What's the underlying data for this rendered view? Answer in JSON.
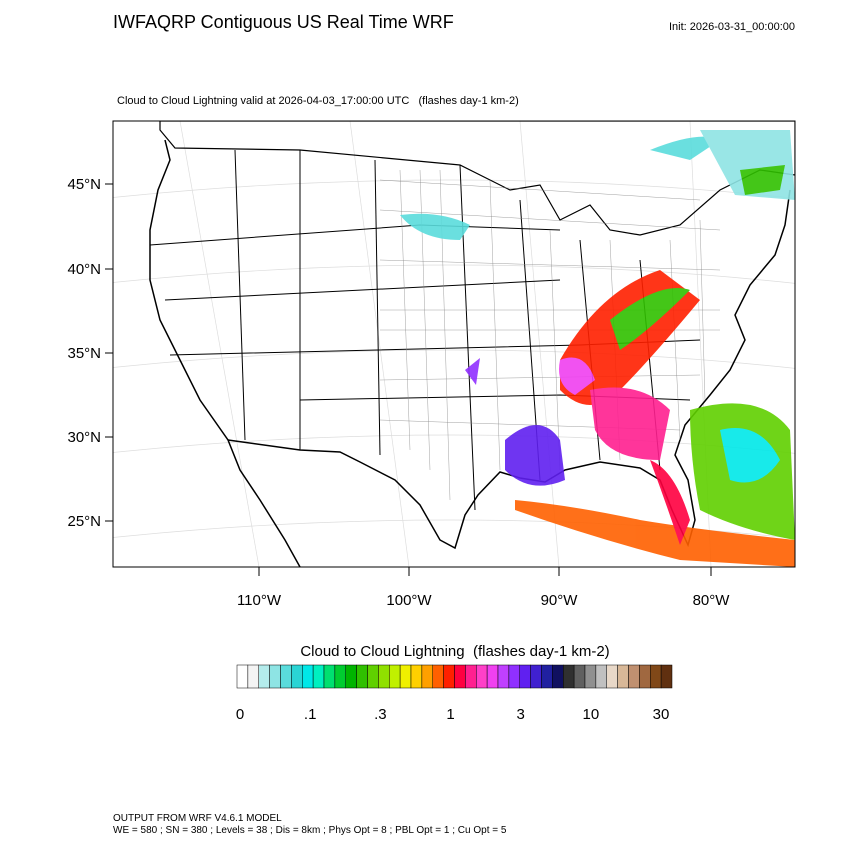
{
  "header": {
    "title": "IWFAQRP Contiguous US Real Time WRF",
    "init": "Init: 2026-03-31_00:00:00",
    "subtitle": "Cloud to Cloud Lightning valid at 2026-04-03_17:00:00 UTC   (flashes day-1 km-2)"
  },
  "map": {
    "lat_labels": [
      "45°N",
      "40°N",
      "35°N",
      "30°N",
      "25°N"
    ],
    "lon_labels": [
      "110°W",
      "100°W",
      "90°W",
      "80°W"
    ]
  },
  "colorbar": {
    "title": "Cloud to Cloud Lightning  (flashes day-1 km-2)",
    "tick_labels": [
      "0",
      ".1",
      ".3",
      "1",
      "3",
      "10",
      "30"
    ],
    "colors": [
      "#ffffff",
      "#f4f4f4",
      "#b4ecec",
      "#8ee4e4",
      "#5adcdc",
      "#2ad4d4",
      "#00e8e8",
      "#00f0c0",
      "#00e070",
      "#00cc30",
      "#00b400",
      "#30c000",
      "#60d000",
      "#90e000",
      "#c0f000",
      "#f0f000",
      "#ffd000",
      "#ffa000",
      "#ff6000",
      "#ff2000",
      "#ff0040",
      "#ff2090",
      "#ff40c8",
      "#f040f0",
      "#c040ff",
      "#9030ff",
      "#6020f0",
      "#4020d0",
      "#2020a0",
      "#101060",
      "#303030",
      "#606060",
      "#909090",
      "#c0c0c0",
      "#e8d8c8",
      "#d8b898",
      "#c09070",
      "#a06840",
      "#804818",
      "#603010"
    ]
  },
  "footer": {
    "line1": "OUTPUT FROM WRF V4.6.1 MODEL",
    "line2": "WE = 580 ; SN = 380 ; Levels = 38 ; Dis = 8km ; Phys Opt = 8 ; PBL Opt = 1 ; Cu Opt = 5"
  }
}
